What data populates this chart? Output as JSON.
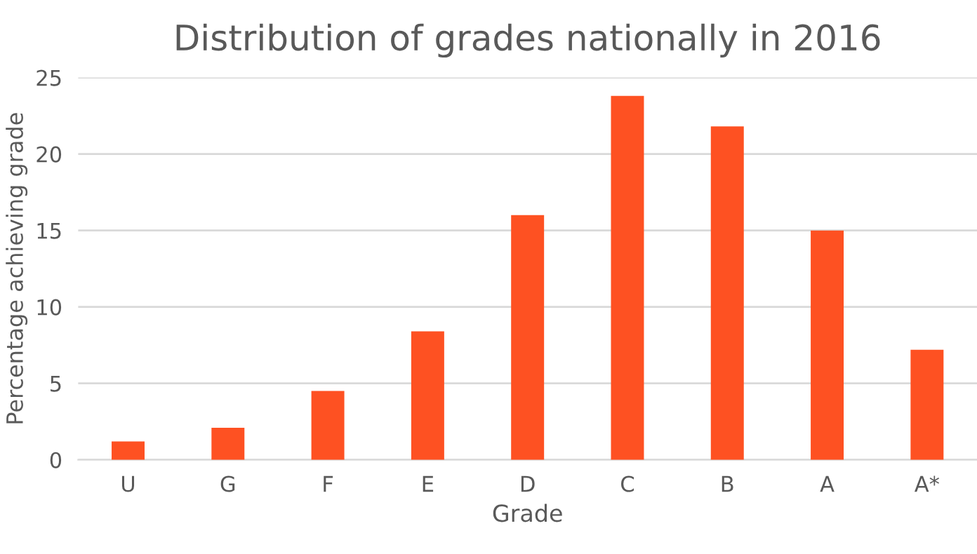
{
  "chart_data": {
    "type": "bar",
    "title": "Distribution of grades nationally in 2016",
    "xlabel": "Grade",
    "ylabel": "Percentage achieving grade",
    "categories": [
      "U",
      "G",
      "F",
      "E",
      "D",
      "C",
      "B",
      "A",
      "A*"
    ],
    "values": [
      1.2,
      2.1,
      4.5,
      8.4,
      16.0,
      23.8,
      21.8,
      15.0,
      7.2
    ],
    "color": "#fe5122",
    "ylim": [
      0,
      25
    ],
    "yticks": [
      0,
      5,
      10,
      15,
      20,
      25
    ],
    "grid": "y"
  }
}
